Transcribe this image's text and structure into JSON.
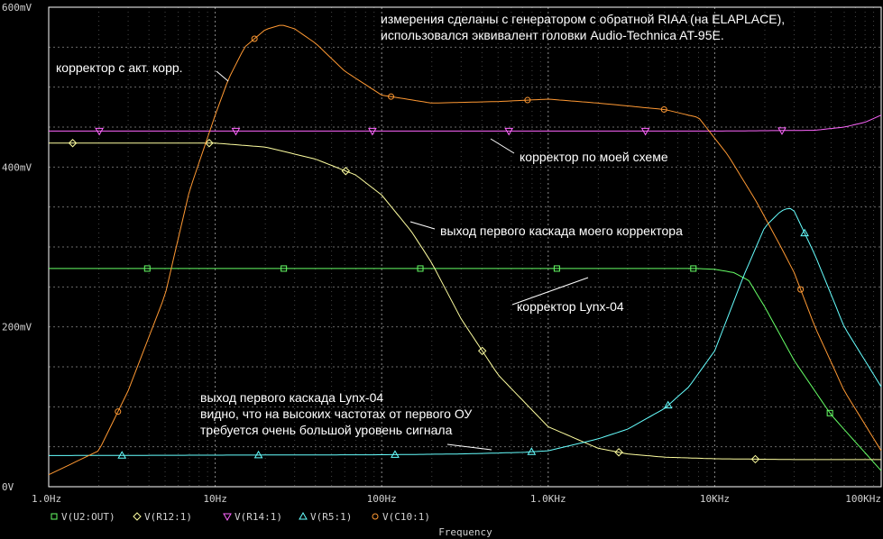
{
  "chart_data": {
    "type": "line",
    "xlabel": "Frequency",
    "xscale": "log",
    "xlim": [
      1,
      100000
    ],
    "ylim": [
      0,
      0.6
    ],
    "grid": true,
    "legend_position": "bottom-left",
    "x_tick_labels": [
      "1.0Hz",
      "10Hz",
      "100Hz",
      "1.0KHz",
      "10KHz",
      "100KHz"
    ],
    "y_tick_labels": [
      "0V",
      "200mV",
      "400mV",
      "600mV"
    ],
    "y_tick_values": [
      0,
      0.2,
      0.4,
      0.6
    ],
    "series": [
      {
        "name": "V(U2:OUT)",
        "color": "#66ff66",
        "marker": "square",
        "x": [
          1,
          100,
          1000,
          3000,
          8000,
          10000,
          13000,
          16000,
          20000,
          30000,
          50000,
          100000
        ],
        "y": [
          0.273,
          0.273,
          0.273,
          0.273,
          0.273,
          0.272,
          0.268,
          0.258,
          0.225,
          0.158,
          0.09,
          0.02
        ]
      },
      {
        "name": "V(R12:1)",
        "color": "#ffffa0",
        "marker": "diamond",
        "x": [
          1,
          10,
          20,
          40,
          70,
          100,
          150,
          200,
          300,
          500,
          1000,
          2000,
          3000,
          5000,
          10000,
          30000,
          100000
        ],
        "y": [
          0.43,
          0.43,
          0.425,
          0.41,
          0.39,
          0.365,
          0.32,
          0.28,
          0.21,
          0.14,
          0.075,
          0.048,
          0.041,
          0.037,
          0.035,
          0.034,
          0.034
        ]
      },
      {
        "name": "V(R14:1)",
        "color": "#ff66ff",
        "marker": "triangle-down",
        "x": [
          1,
          10,
          100,
          1000,
          10000,
          40000,
          60000,
          80000,
          100000
        ],
        "y": [
          0.445,
          0.445,
          0.445,
          0.445,
          0.445,
          0.446,
          0.45,
          0.456,
          0.465
        ]
      },
      {
        "name": "V(R5:1)",
        "color": "#66ffff",
        "marker": "triangle-up",
        "x": [
          1,
          100,
          300,
          700,
          1000,
          2000,
          3000,
          5000,
          7000,
          10000,
          15000,
          20000,
          25000,
          28000,
          30000,
          40000,
          60000,
          100000
        ],
        "y": [
          0.039,
          0.04,
          0.041,
          0.043,
          0.045,
          0.06,
          0.072,
          0.098,
          0.125,
          0.17,
          0.265,
          0.325,
          0.345,
          0.349,
          0.345,
          0.29,
          0.2,
          0.125
        ]
      },
      {
        "name": "V(C10:1)",
        "color": "#ff9933",
        "marker": "circle",
        "x": [
          1,
          2,
          3,
          5,
          7,
          10,
          12,
          15,
          20,
          25,
          30,
          40,
          60,
          100,
          200,
          500,
          1000,
          2000,
          5000,
          8000,
          12000,
          18000,
          25000,
          30000,
          40000,
          60000,
          100000
        ],
        "y": [
          0.015,
          0.045,
          0.12,
          0.24,
          0.37,
          0.465,
          0.51,
          0.55,
          0.572,
          0.578,
          0.573,
          0.555,
          0.52,
          0.49,
          0.48,
          0.482,
          0.485,
          0.48,
          0.472,
          0.462,
          0.415,
          0.355,
          0.3,
          0.268,
          0.2,
          0.12,
          0.045
        ]
      }
    ],
    "annotations": [
      "измерения сделаны с генератором с обратной RIAA (на ELAPLACE),",
      "использовался эквивалент головки Audio-Technica AT-95E.",
      "корректор  с акт. корр.",
      "корректор по моей схеме",
      "выход первого каскада моего корректора",
      "корректор Lynx-04",
      "выход первого каскада Lynx-04",
      "видно, что на высоких частотах от первого ОУ",
      "требуется очень большой уровень сигнала"
    ]
  }
}
